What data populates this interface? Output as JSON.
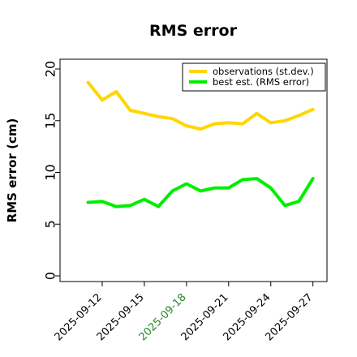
{
  "chart_data": {
    "type": "line",
    "title": "RMS error",
    "xlabel": "",
    "ylabel": "RMS error (cm)",
    "ylim": [
      0,
      21
    ],
    "yticks": [
      0,
      5,
      10,
      15,
      20
    ],
    "xlim": [
      "2025-09-09",
      "2025-09-28"
    ],
    "xticks": [
      {
        "date": "2025-09-12",
        "label": "2025-09-12",
        "color": "#000000"
      },
      {
        "date": "2025-09-15",
        "label": "2025-09-15",
        "color": "#000000"
      },
      {
        "date": "2025-09-18",
        "label": "2025-09-18",
        "color": "#228b22"
      },
      {
        "date": "2025-09-21",
        "label": "2025-09-21",
        "color": "#000000"
      },
      {
        "date": "2025-09-24",
        "label": "2025-09-24",
        "color": "#000000"
      },
      {
        "date": "2025-09-27",
        "label": "2025-09-27",
        "color": "#000000"
      }
    ],
    "x": [
      "2025-09-11",
      "2025-09-12",
      "2025-09-13",
      "2025-09-14",
      "2025-09-15",
      "2025-09-16",
      "2025-09-17",
      "2025-09-18",
      "2025-09-19",
      "2025-09-20",
      "2025-09-21",
      "2025-09-22",
      "2025-09-23",
      "2025-09-24",
      "2025-09-25",
      "2025-09-26",
      "2025-09-27"
    ],
    "series": [
      {
        "name": "observations (st.dev.)",
        "color": "#ffd700",
        "values": [
          18.7,
          17.0,
          17.8,
          16.0,
          15.7,
          15.4,
          15.2,
          14.5,
          14.2,
          14.7,
          14.8,
          14.7,
          15.7,
          14.8,
          15.0,
          15.5,
          16.1
        ]
      },
      {
        "name": "best est. (RMS error)",
        "color": "#00ee00",
        "values": [
          7.1,
          7.2,
          6.7,
          6.8,
          7.4,
          6.7,
          8.2,
          8.9,
          8.2,
          8.5,
          8.5,
          9.3,
          9.4,
          8.5,
          6.8,
          7.2,
          9.4
        ]
      }
    ],
    "grid": false,
    "legend": "top-right"
  }
}
